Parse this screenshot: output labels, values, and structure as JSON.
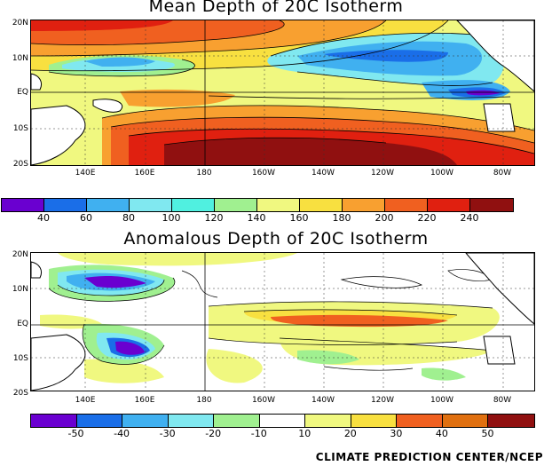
{
  "panels": [
    {
      "title": "Mean Depth of 20C Isotherm",
      "lat_labels": [
        "20N",
        "10N",
        "EQ",
        "10S",
        "20S"
      ],
      "lon_labels": [
        "140E",
        "160E",
        "180",
        "160W",
        "140W",
        "120W",
        "100W",
        "80W"
      ],
      "colorbar": {
        "colors": [
          "#6a00d0",
          "#1a6ee8",
          "#40b0f0",
          "#80e8f0",
          "#50f0e0",
          "#a0f090",
          "#f0f880",
          "#f8e040",
          "#f8a030",
          "#f06020",
          "#e02010",
          "#901010"
        ],
        "labels": [
          "40",
          "60",
          "80",
          "100",
          "120",
          "140",
          "160",
          "180",
          "200",
          "220",
          "240"
        ]
      }
    },
    {
      "title": "Anomalous Depth of 20C Isotherm",
      "lat_labels": [
        "20N",
        "10N",
        "EQ",
        "10S",
        "20S"
      ],
      "lon_labels": [
        "140E",
        "160E",
        "180",
        "160W",
        "140W",
        "120W",
        "100W",
        "80W"
      ],
      "colorbar": {
        "colors": [
          "#6a00d0",
          "#1a6ee8",
          "#40b0f0",
          "#80e8f0",
          "#a0f090",
          "#ffffff",
          "#f0f880",
          "#f8e040",
          "#f06020",
          "#e07010",
          "#901010"
        ],
        "labels": [
          "-50",
          "-40",
          "-30",
          "-20",
          "-10",
          "10",
          "20",
          "30",
          "40",
          "50"
        ]
      }
    }
  ],
  "credit": "CLIMATE PREDICTION CENTER/NCEP"
}
